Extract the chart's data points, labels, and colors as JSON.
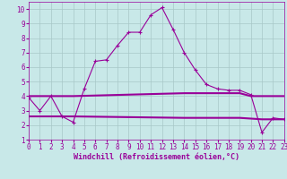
{
  "line1_x": [
    0,
    1,
    2,
    3,
    4,
    5,
    6,
    7,
    8,
    9,
    10,
    11,
    12,
    13,
    14,
    15,
    16,
    17,
    18,
    19,
    20,
    21,
    22,
    23
  ],
  "line1_y": [
    3.9,
    3.0,
    4.0,
    2.6,
    2.2,
    4.5,
    6.4,
    6.5,
    7.5,
    8.4,
    8.4,
    9.6,
    10.1,
    8.6,
    7.0,
    5.8,
    4.8,
    4.5,
    4.4,
    4.4,
    4.1,
    1.5,
    2.5,
    2.4
  ],
  "line2_x": [
    0,
    4,
    14,
    19,
    20,
    23
  ],
  "line2_y": [
    4.0,
    4.0,
    4.2,
    4.2,
    4.0,
    4.0
  ],
  "line3_x": [
    0,
    4,
    14,
    19,
    21,
    23
  ],
  "line3_y": [
    2.6,
    2.6,
    2.5,
    2.5,
    2.4,
    2.4
  ],
  "color": "#990099",
  "bg_color": "#c8e8e8",
  "grid_color": "#a8c8c8",
  "xlabel": "Windchill (Refroidissement éolien,°C)",
  "xlim": [
    0,
    23
  ],
  "ylim": [
    1,
    10.5
  ],
  "yticks": [
    1,
    2,
    3,
    4,
    5,
    6,
    7,
    8,
    9,
    10
  ],
  "xticks": [
    0,
    1,
    2,
    3,
    4,
    5,
    6,
    7,
    8,
    9,
    10,
    11,
    12,
    13,
    14,
    15,
    16,
    17,
    18,
    19,
    20,
    21,
    22,
    23
  ],
  "xlabel_fontsize": 6.0,
  "tick_fontsize": 5.5
}
